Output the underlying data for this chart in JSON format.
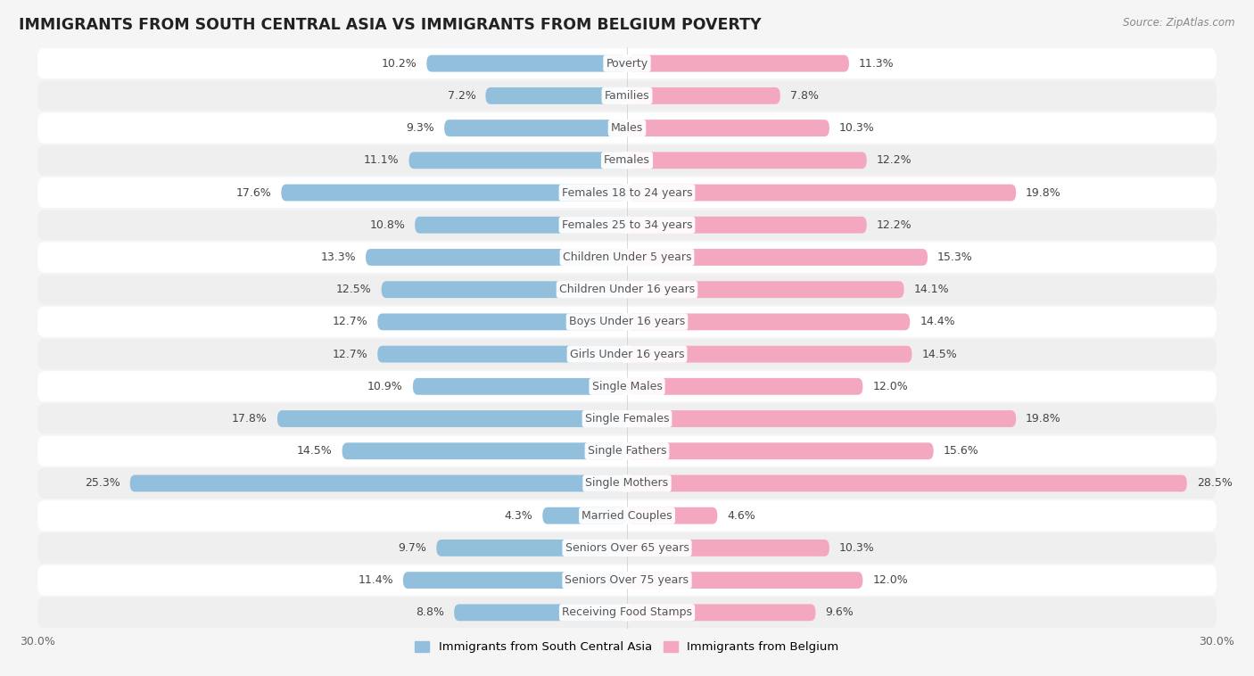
{
  "title": "IMMIGRANTS FROM SOUTH CENTRAL ASIA VS IMMIGRANTS FROM BELGIUM POVERTY",
  "source": "Source: ZipAtlas.com",
  "categories": [
    "Poverty",
    "Families",
    "Males",
    "Females",
    "Females 18 to 24 years",
    "Females 25 to 34 years",
    "Children Under 5 years",
    "Children Under 16 years",
    "Boys Under 16 years",
    "Girls Under 16 years",
    "Single Males",
    "Single Females",
    "Single Fathers",
    "Single Mothers",
    "Married Couples",
    "Seniors Over 65 years",
    "Seniors Over 75 years",
    "Receiving Food Stamps"
  ],
  "left_values": [
    10.2,
    7.2,
    9.3,
    11.1,
    17.6,
    10.8,
    13.3,
    12.5,
    12.7,
    12.7,
    10.9,
    17.8,
    14.5,
    25.3,
    4.3,
    9.7,
    11.4,
    8.8
  ],
  "right_values": [
    11.3,
    7.8,
    10.3,
    12.2,
    19.8,
    12.2,
    15.3,
    14.1,
    14.4,
    14.5,
    12.0,
    19.8,
    15.6,
    28.5,
    4.6,
    10.3,
    12.0,
    9.6
  ],
  "left_color": "#92c0dc",
  "right_color": "#f4a8c0",
  "left_label": "Immigrants from South Central Asia",
  "right_label": "Immigrants from Belgium",
  "xlim": 30.0,
  "bar_max": 30.0,
  "bg_white": "#ffffff",
  "bg_light": "#efefef",
  "title_fontsize": 12.5,
  "label_fontsize": 9,
  "value_fontsize": 9
}
